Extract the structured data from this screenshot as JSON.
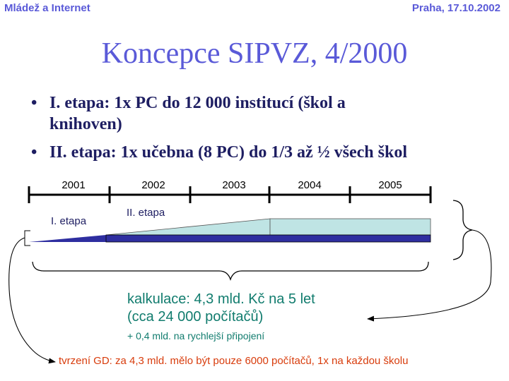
{
  "header": {
    "left": "Mládež a Internet",
    "right": "Praha, 17.10.2002"
  },
  "title": "Koncepce SIPVZ, 4/2000",
  "bullets": [
    {
      "line1": "I. etapa: 1x PC do 12 000 institucí (škol a",
      "line2": "knihoven)"
    },
    {
      "line1": "II. etapa: 1x učebna (8 PC) do 1/3 až ½ všech škol"
    }
  ],
  "timeline": {
    "years": [
      "2001",
      "2002",
      "2003",
      "2004",
      "2005"
    ],
    "stage1_label": "I. etapa",
    "stage2_label": "II. etapa"
  },
  "colors": {
    "accent": "#5a5ad8",
    "text_dark": "#1e1e62",
    "bar_dark": "#2e2ea0",
    "bar_light": "#bfe4e4",
    "green": "#117c6e",
    "red": "#d83c0c"
  },
  "calc": {
    "line1": "kalkulace: 4,3 mld. Kč na 5 let",
    "line2": "(cca 24 000 počítačů)",
    "note": "+ 0,4 mld. na rychlejší připojení"
  },
  "gd_note": "tvrzení GD: za 4,3 mld. mělo být pouze 6000 počítačů, 1x na každou školu"
}
